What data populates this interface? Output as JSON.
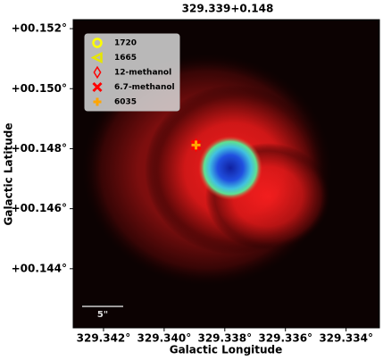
{
  "chart_data": {
    "type": "scatter",
    "title": "329.339+0.148",
    "x_label": "Galactic Longitude",
    "y_label": "Galactic Latitude",
    "scale_bar_label": "5\"",
    "xlim": [
      329.343,
      329.3329
    ],
    "ylim": [
      0.14203,
      0.1523
    ],
    "xticks": [
      {
        "value": 329.342,
        "label": "329.342°"
      },
      {
        "value": 329.34,
        "label": "329.340°"
      },
      {
        "value": 329.338,
        "label": "329.338°"
      },
      {
        "value": 329.336,
        "label": "329.336°"
      },
      {
        "value": 329.334,
        "label": "329.334°"
      }
    ],
    "yticks": [
      {
        "value": 0.152,
        "label": "+00.152°"
      },
      {
        "value": 0.15,
        "label": "+00.150°"
      },
      {
        "value": 0.148,
        "label": "+00.148°"
      },
      {
        "value": 0.146,
        "label": "+00.146°"
      },
      {
        "value": 0.144,
        "label": "+00.144°"
      }
    ],
    "legend": "upper left",
    "series": [
      {
        "name": "1720",
        "color": "#ffff00",
        "marker": "circle",
        "x": [],
        "values": []
      },
      {
        "name": "1665",
        "color": "#e6e600",
        "marker": "triangle",
        "x": [],
        "values": []
      },
      {
        "name": "12-methanol",
        "color": "#ff0000",
        "marker": "diamond",
        "x": [
          329.33895
        ],
        "values": [
          0.14812
        ]
      },
      {
        "name": "6.7-methanol",
        "color": "#ff0000",
        "marker": "x",
        "x": [
          329.33895
        ],
        "values": [
          0.14812
        ]
      },
      {
        "name": "6035",
        "color": "#ffa500",
        "marker": "plus",
        "x": [
          329.33895
        ],
        "values": [
          0.14812
        ]
      }
    ]
  }
}
